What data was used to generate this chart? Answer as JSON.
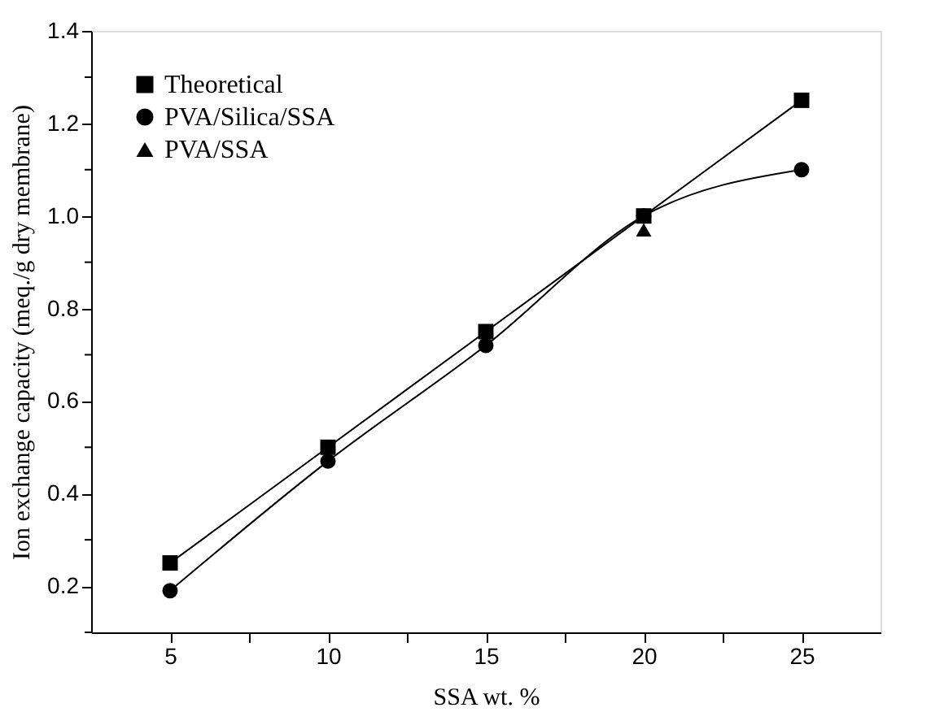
{
  "chart_data": {
    "type": "line",
    "xlabel": "SSA wt. %",
    "ylabel": "Ion exchange capacity (meq./g dry membrane)",
    "x": [
      5,
      10,
      15,
      20,
      25
    ],
    "series": [
      {
        "name": "Theoretical",
        "marker": "square",
        "color": "#000000",
        "values": [
          0.25,
          0.5,
          0.75,
          1.0,
          1.25
        ]
      },
      {
        "name": "PVA/Silica/SSA",
        "marker": "circle",
        "color": "#000000",
        "values": [
          0.19,
          0.47,
          0.72,
          1.0,
          1.1
        ]
      },
      {
        "name": "PVA/SSA",
        "type": "scatter",
        "marker": "triangle",
        "color": "#000000",
        "x": [
          20
        ],
        "values": [
          0.97
        ]
      }
    ],
    "xlim": [
      2.5,
      27.5
    ],
    "xticks": [
      5,
      {
        "value": 7.5,
        "label": null
      },
      10,
      {
        "value": 12.5,
        "label": null
      },
      15,
      {
        "value": 17.5,
        "label": null
      },
      20,
      {
        "value": 22.5,
        "label": null
      },
      25
    ],
    "ylim": [
      0.1,
      1.4
    ],
    "yticks": [
      {
        "value": 0.1,
        "label": null
      },
      {
        "value": 0.2,
        "label": "0.2"
      },
      {
        "value": 0.3,
        "label": null
      },
      {
        "value": 0.4,
        "label": "0.4"
      },
      {
        "value": 0.5,
        "label": null
      },
      {
        "value": 0.6,
        "label": "0.6"
      },
      {
        "value": 0.7,
        "label": null
      },
      {
        "value": 0.8,
        "label": "0.8"
      },
      {
        "value": 0.9,
        "label": null
      },
      {
        "value": 1.0,
        "label": "1.0"
      },
      {
        "value": 1.1,
        "label": null
      },
      {
        "value": 1.2,
        "label": "1.2"
      },
      {
        "value": 1.3,
        "label": null
      },
      {
        "value": 1.4,
        "label": "1.4"
      }
    ],
    "grid": false,
    "legend": "top left"
  }
}
